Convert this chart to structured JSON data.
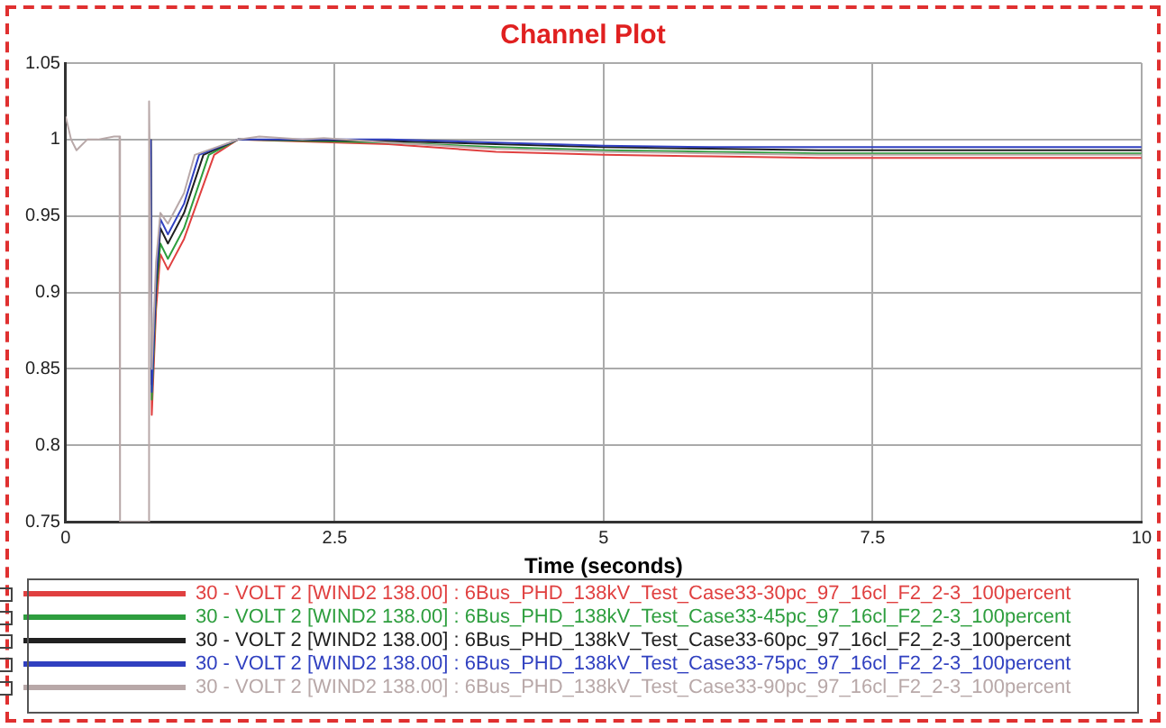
{
  "chart_data": {
    "type": "line",
    "title": "Channel Plot",
    "xlabel": "Time (seconds)",
    "xlim": [
      0,
      10
    ],
    "xticks": [
      0,
      2.5,
      5,
      7.5,
      10
    ],
    "ylim": [
      0.75,
      1.05
    ],
    "yticks": [
      0.75,
      0.8,
      0.85,
      0.9,
      0.95,
      1,
      1.05
    ],
    "grid": true,
    "legend": "bottom",
    "marker": "none",
    "line_style": "solid",
    "series": [
      {
        "name": "30 - VOLT 2 [WIND2 138.00] : 6Bus_PHD_138kV_Test_Case33-30pc_97_16cl_F2_2-3_100percent",
        "color": "#e04040",
        "x": [
          0.79,
          0.8,
          0.84,
          0.88,
          0.95,
          1.1,
          1.38,
          1.6,
          3,
          4,
          5,
          6,
          7,
          10
        ],
        "values": [
          1.0,
          0.82,
          0.889,
          0.925,
          0.915,
          0.935,
          0.99,
          1.0,
          0.997,
          0.992,
          0.99,
          0.989,
          0.988,
          0.988
        ]
      },
      {
        "name": "30 - VOLT 2 [WIND2 138.00] : 6Bus_PHD_138kV_Test_Case33-45pc_97_16cl_F2_2-3_100percent",
        "color": "#2e9e3e",
        "x": [
          0.79,
          0.8,
          0.84,
          0.88,
          0.95,
          1.1,
          1.33,
          1.6,
          3,
          4,
          5,
          6,
          7,
          10
        ],
        "values": [
          1.0,
          0.83,
          0.9,
          0.932,
          0.922,
          0.942,
          0.99,
          1.0,
          0.998,
          0.995,
          0.993,
          0.992,
          0.991,
          0.991
        ]
      },
      {
        "name": "30 - VOLT 2 [WIND2 138.00] : 6Bus_PHD_138kV_Test_Case33-60pc_97_16cl_F2_2-3_100percent",
        "color": "#202020",
        "x": [
          0.79,
          0.8,
          0.84,
          0.88,
          0.95,
          1.1,
          1.28,
          1.6,
          3,
          4,
          5,
          6,
          7,
          10
        ],
        "values": [
          1.0,
          0.84,
          0.905,
          0.942,
          0.932,
          0.952,
          0.99,
          1.0,
          0.999,
          0.997,
          0.995,
          0.994,
          0.993,
          0.993
        ]
      },
      {
        "name": "30 - VOLT 2 [WIND2 138.00] : 6Bus_PHD_138kV_Test_Case33-75pc_97_16cl_F2_2-3_100percent",
        "color": "#3040c0",
        "x": [
          0.79,
          0.8,
          0.84,
          0.88,
          0.95,
          1.1,
          1.24,
          1.6,
          3,
          4,
          5,
          6,
          7,
          10
        ],
        "values": [
          1.0,
          0.835,
          0.91,
          0.948,
          0.938,
          0.958,
          0.99,
          1.0,
          1.0,
          0.998,
          0.996,
          0.995,
          0.995,
          0.995
        ]
      },
      {
        "name": "30 - VOLT 2 [WIND2 138.00] : 6Bus_PHD_138kV_Test_Case33-90pc_97_16cl_F2_2-3_100percent",
        "color": "#b8a8a8",
        "x": [
          0,
          0.05,
          0.1,
          0.2,
          0.3,
          0.45,
          0.5,
          0.505,
          0.77,
          0.775,
          0.8,
          0.84,
          0.88,
          0.95,
          1.1,
          1.2,
          1.6,
          1.8,
          2.2,
          2.4,
          3,
          4,
          5,
          6,
          7,
          10
        ],
        "values": [
          1.015,
          1.0,
          0.993,
          1.0,
          1.0,
          1.002,
          1.002,
          0.75,
          0.75,
          1.025,
          0.85,
          0.92,
          0.952,
          0.945,
          0.965,
          0.99,
          1.0,
          1.002,
          1.0,
          1.001,
          0.998,
          0.994,
          0.992,
          0.991,
          0.99,
          0.99
        ]
      }
    ]
  }
}
